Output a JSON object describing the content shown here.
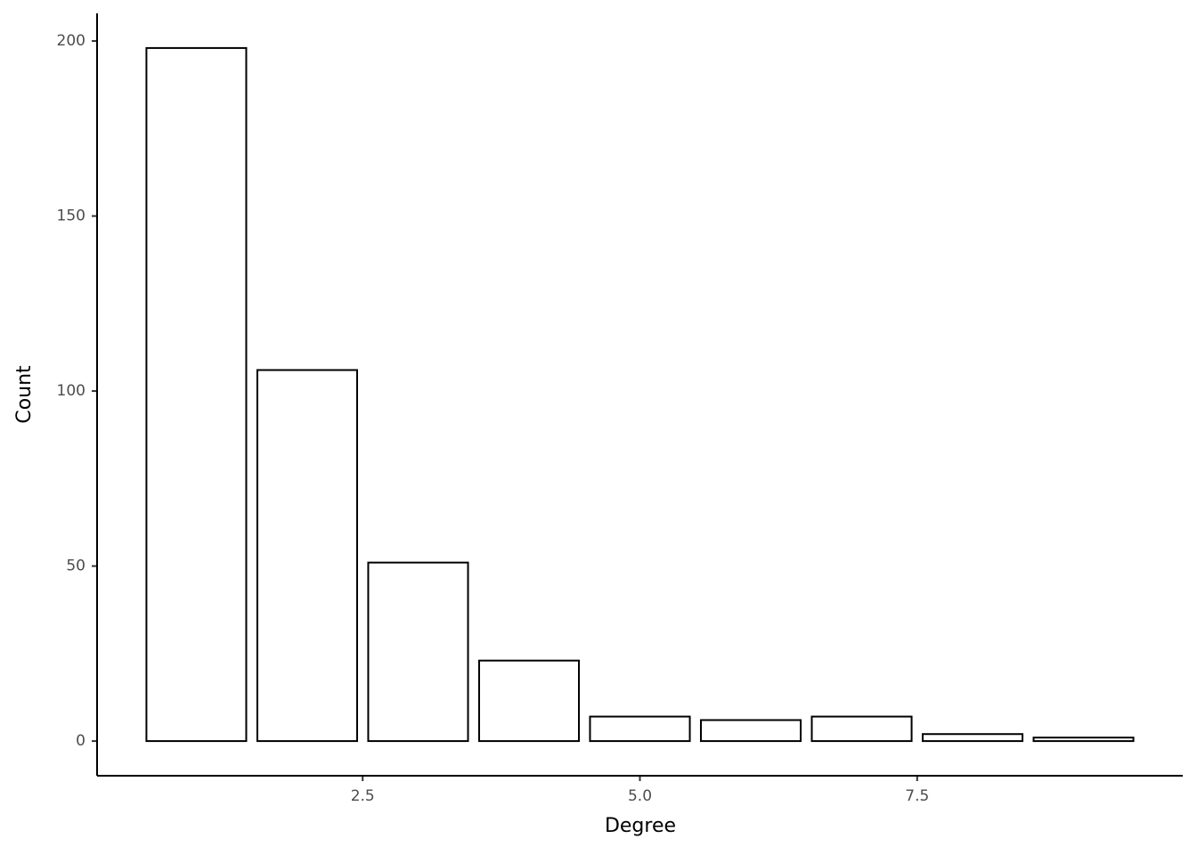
{
  "chart_data": {
    "type": "bar",
    "x_label": "Degree",
    "y_label": "Count",
    "x": [
      1,
      2,
      3,
      4,
      5,
      6,
      7,
      8,
      9
    ],
    "values": [
      198,
      106,
      51,
      23,
      7,
      6,
      7,
      2,
      1
    ],
    "color": "#ffffff",
    "edge_color": "#000000",
    "xlim": [
      0.105,
      9.895
    ],
    "xticks": [
      2.5,
      {
        "value": 5,
        "label": "5.0"
      },
      7.5
    ],
    "ylim": [
      -9.9,
      207.9
    ],
    "yticks": [
      0,
      50,
      100,
      150,
      200
    ],
    "grid": false
  }
}
